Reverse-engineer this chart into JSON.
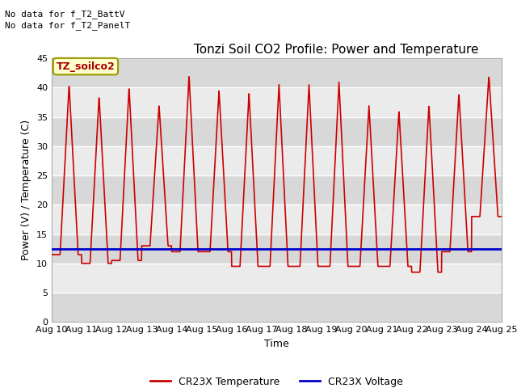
{
  "title": "Tonzi Soil CO2 Profile: Power and Temperature",
  "ylabel": "Power (V) / Temperature (C)",
  "xlabel": "Time",
  "ylim": [
    0,
    45
  ],
  "xlim": [
    0,
    15
  ],
  "x_tick_labels": [
    "Aug 10",
    "Aug 11",
    "Aug 12",
    "Aug 13",
    "Aug 14",
    "Aug 15",
    "Aug 16",
    "Aug 17",
    "Aug 18",
    "Aug 19",
    "Aug 20",
    "Aug 21",
    "Aug 22",
    "Aug 23",
    "Aug 24",
    "Aug 25"
  ],
  "header_text1": "No data for f_T2_BattV",
  "header_text2": "No data for f_T2_PanelT",
  "box_label": "TZ_soilco2",
  "box_color": "#ffffcc",
  "box_border": "#cccc00",
  "bg_color_dark": "#d8d8d8",
  "bg_color_light": "#ebebeb",
  "grid_color": "#cccccc",
  "temp_color": "#cc0000",
  "voltage_color": "#0000cc",
  "legend_temp": "CR23X Temperature",
  "legend_voltage": "CR23X Voltage",
  "peak_temps": [
    40.5,
    38.5,
    40.0,
    37.0,
    42.0,
    39.5,
    39.0,
    40.5,
    40.5,
    41.0,
    37.0,
    36.0,
    37.0,
    39.0,
    42.0
  ],
  "min_temps": [
    11.5,
    10.0,
    10.5,
    13.0,
    12.0,
    12.0,
    9.5,
    9.5,
    9.5,
    9.5,
    9.5,
    9.5,
    8.5,
    12.0,
    18.0
  ],
  "voltage_value": 12.4,
  "title_fontsize": 11,
  "label_fontsize": 9,
  "tick_fontsize": 8
}
